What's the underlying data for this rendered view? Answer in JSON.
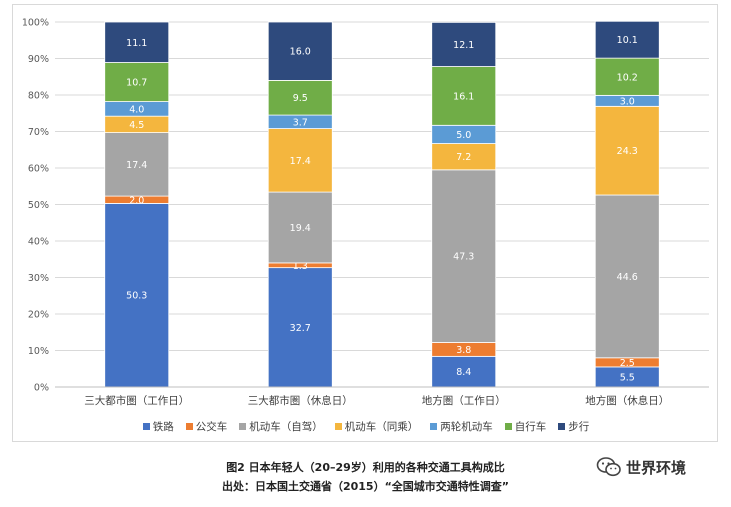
{
  "chart_data": {
    "type": "bar",
    "stacked": true,
    "categories": [
      "三大都市圏（工作日）",
      "三大都市圏（休息日）",
      "地方圏（工作日）",
      "地方圏（休息日）"
    ],
    "series": [
      {
        "name": "铁路",
        "color": "#4472c4",
        "values": [
          50.3,
          32.7,
          8.4,
          5.5
        ]
      },
      {
        "name": "公交车",
        "color": "#ed7d31",
        "values": [
          2.0,
          1.3,
          3.8,
          2.5
        ]
      },
      {
        "name": "机动车（自驾）",
        "color": "#a5a5a5",
        "values": [
          17.4,
          19.4,
          47.3,
          44.6
        ]
      },
      {
        "name": "机动车（同乘）",
        "color": "#f4b63e",
        "values": [
          4.5,
          17.4,
          7.2,
          24.3
        ]
      },
      {
        "name": "两轮机动车",
        "color": "#5b9bd5",
        "values": [
          4.0,
          3.7,
          5.0,
          3.0
        ]
      },
      {
        "name": "自行车",
        "color": "#70ad47",
        "values": [
          10.7,
          9.5,
          16.1,
          10.2
        ]
      },
      {
        "name": "步行",
        "color": "#2e4a7d",
        "values": [
          11.1,
          16.0,
          12.1,
          10.1
        ]
      }
    ],
    "y_ticks": [
      "0%",
      "10%",
      "20%",
      "30%",
      "40%",
      "50%",
      "60%",
      "70%",
      "80%",
      "90%",
      "100%"
    ],
    "ylim": [
      0,
      100
    ],
    "legend_position": "bottom",
    "grid": true
  },
  "caption": {
    "line1": "图2  日本年轻人（20–29岁）利用的各种交通工具构成比",
    "line2": "出处：日本国土交通省（2015）“全国城市交通特性调查”"
  },
  "watermark": {
    "text": "世界环境",
    "icon": "wechat-icon"
  }
}
